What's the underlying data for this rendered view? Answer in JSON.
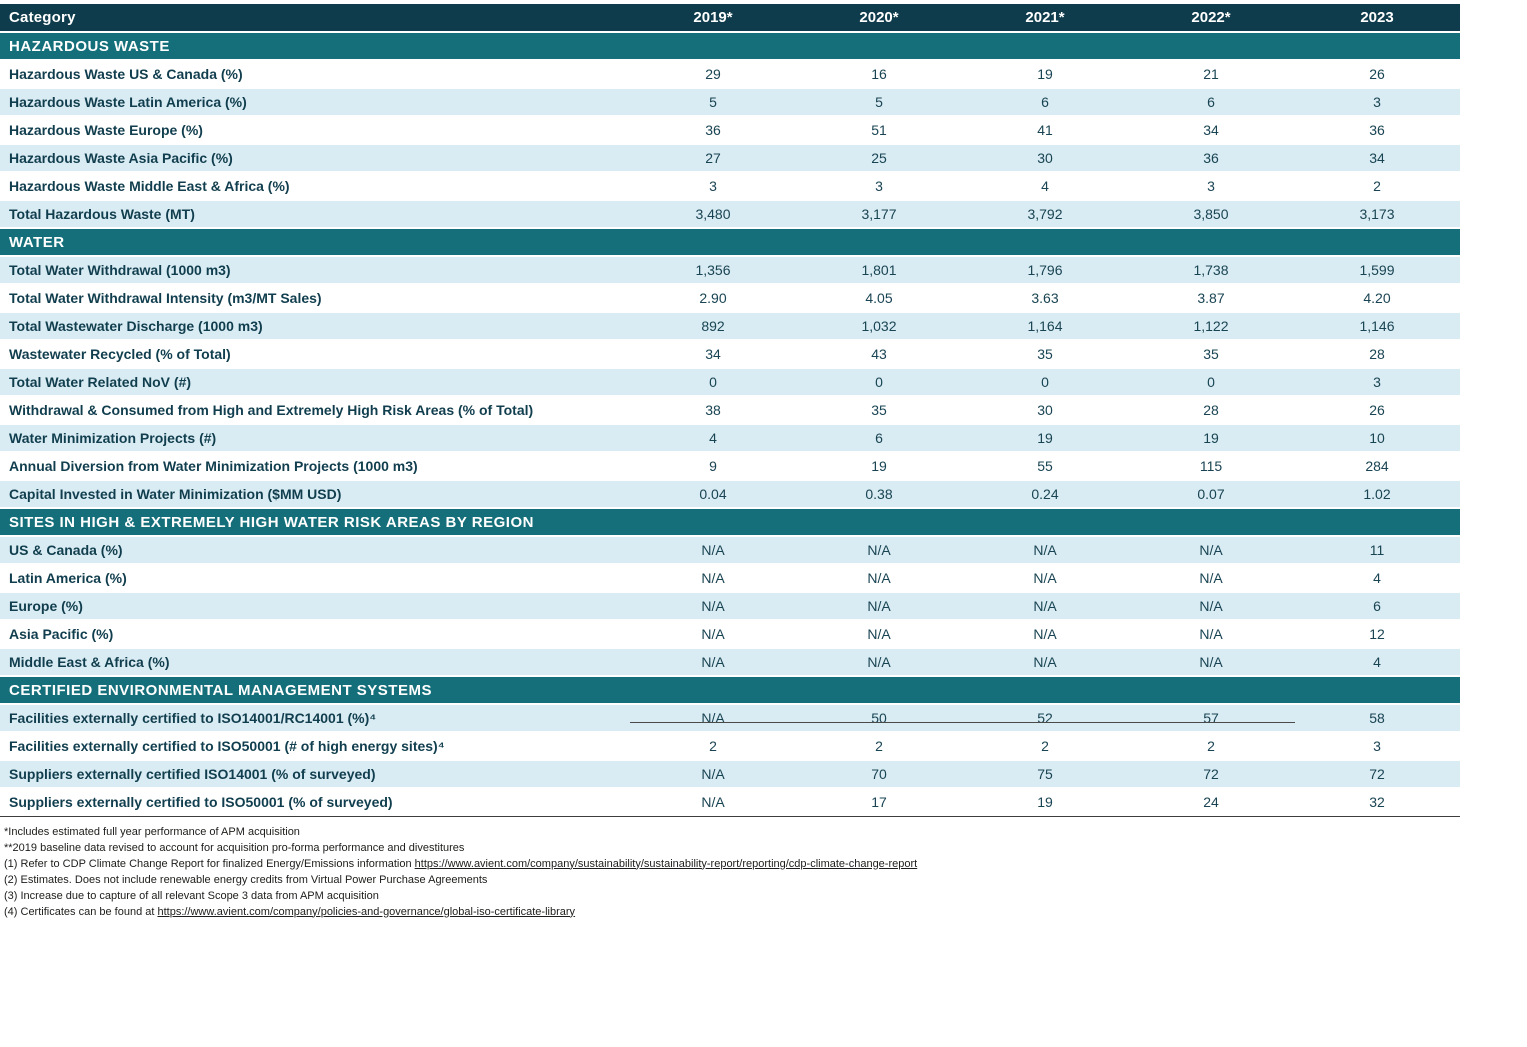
{
  "table": {
    "header": {
      "category_label": "Category",
      "years": [
        "2019*",
        "2020*",
        "2021*",
        "2022*",
        "2023"
      ]
    },
    "sections": [
      {
        "title": "HAZARDOUS WASTE",
        "rows": [
          {
            "label": "Hazardous Waste US & Canada (%)",
            "values": [
              "29",
              "16",
              "19",
              "21",
              "26"
            ]
          },
          {
            "label": "Hazardous Waste Latin America (%)",
            "values": [
              "5",
              "5",
              "6",
              "6",
              "3"
            ]
          },
          {
            "label": "Hazardous Waste Europe (%)",
            "values": [
              "36",
              "51",
              "41",
              "34",
              "36"
            ]
          },
          {
            "label": "Hazardous Waste Asia Pacific (%)",
            "values": [
              "27",
              "25",
              "30",
              "36",
              "34"
            ]
          },
          {
            "label": "Hazardous Waste Middle East & Africa (%)",
            "values": [
              "3",
              "3",
              "4",
              "3",
              "2"
            ]
          },
          {
            "label": "Total Hazardous Waste (MT)",
            "values": [
              "3,480",
              "3,177",
              "3,792",
              "3,850",
              "3,173"
            ]
          }
        ]
      },
      {
        "title": "WATER",
        "rows": [
          {
            "label": "Total Water Withdrawal (1000 m3)",
            "values": [
              "1,356",
              "1,801",
              "1,796",
              "1,738",
              "1,599"
            ]
          },
          {
            "label": "Total Water Withdrawal Intensity (m3/MT Sales)",
            "values": [
              "2.90",
              "4.05",
              "3.63",
              "3.87",
              "4.20"
            ]
          },
          {
            "label": "Total Wastewater Discharge (1000 m3)",
            "values": [
              "892",
              "1,032",
              "1,164",
              "1,122",
              "1,146"
            ]
          },
          {
            "label": "Wastewater Recycled (% of Total)",
            "values": [
              "34",
              "43",
              "35",
              "35",
              "28"
            ]
          },
          {
            "label": "Total Water Related NoV (#)",
            "values": [
              "0",
              "0",
              "0",
              "0",
              "3"
            ]
          },
          {
            "label": "Withdrawal & Consumed from High and Extremely High Risk Areas (% of Total)",
            "values": [
              "38",
              "35",
              "30",
              "28",
              "26"
            ]
          },
          {
            "label": "Water Minimization Projects (#)",
            "values": [
              "4",
              "6",
              "19",
              "19",
              "10"
            ]
          },
          {
            "label": "Annual Diversion from Water Minimization Projects (1000 m3)",
            "values": [
              "9",
              "19",
              "55",
              "115",
              "284"
            ]
          },
          {
            "label": "Capital Invested in Water Minimization ($MM USD)",
            "values": [
              "0.04",
              "0.38",
              "0.24",
              "0.07",
              "1.02"
            ]
          }
        ]
      },
      {
        "title": "SITES IN HIGH & EXTREMELY HIGH WATER RISK AREAS BY REGION",
        "rows": [
          {
            "label": "US & Canada (%)",
            "values": [
              "N/A",
              "N/A",
              "N/A",
              "N/A",
              "11"
            ]
          },
          {
            "label": "Latin America (%)",
            "values": [
              "N/A",
              "N/A",
              "N/A",
              "N/A",
              "4"
            ]
          },
          {
            "label": "Europe (%)",
            "values": [
              "N/A",
              "N/A",
              "N/A",
              "N/A",
              "6"
            ]
          },
          {
            "label": "Asia Pacific (%)",
            "values": [
              "N/A",
              "N/A",
              "N/A",
              "N/A",
              "12"
            ]
          },
          {
            "label": "Middle East & Africa (%)",
            "values": [
              "N/A",
              "N/A",
              "N/A",
              "N/A",
              "4"
            ]
          }
        ]
      },
      {
        "title": "CERTIFIED ENVIRONMENTAL MANAGEMENT SYSTEMS",
        "rows": [
          {
            "label": "Facilities externally certified to ISO14001/RC14001 (%)⁴",
            "values": [
              "N/A",
              "50",
              "52",
              "57",
              "58"
            ]
          },
          {
            "label": "Facilities externally certified to ISO50001 (# of high energy sites)⁴",
            "values": [
              "2",
              "2",
              "2",
              "2",
              "3"
            ]
          },
          {
            "label": "Suppliers externally certified ISO14001 (% of surveyed)",
            "values": [
              "N/A",
              "70",
              "75",
              "72",
              "72"
            ]
          },
          {
            "label": "Suppliers externally certified to ISO50001 (% of surveyed)",
            "values": [
              "N/A",
              "17",
              "19",
              "24",
              "32"
            ]
          }
        ]
      }
    ]
  },
  "footnotes": [
    {
      "prefix": "*Includes estimated full year performance of APM acquisition",
      "link": ""
    },
    {
      "prefix": "**2019 baseline data revised to account for acquisition pro-forma performance and divestitures",
      "link": ""
    },
    {
      "prefix": "(1) Refer to CDP Climate Change Report for finalized Energy/Emissions information ",
      "link": "https://www.avient.com/company/sustainability/sustainability-report/reporting/cdp-climate-change-report"
    },
    {
      "prefix": "(2) Estimates. Does not include renewable energy credits from Virtual Power Purchase Agreements",
      "link": ""
    },
    {
      "prefix": "(3) Increase due to capture of all relevant Scope 3 data from APM acquisition",
      "link": ""
    },
    {
      "prefix": "(4) Certificates can be found at ",
      "link": "https://www.avient.com/company/policies-and-governance/global-iso-certificate-library"
    }
  ],
  "colors": {
    "header_bg": "#0e3c4c",
    "section_bg": "#156f7a",
    "row_alt_bg": "#d9ecf3",
    "label_text": "#113e4e"
  }
}
